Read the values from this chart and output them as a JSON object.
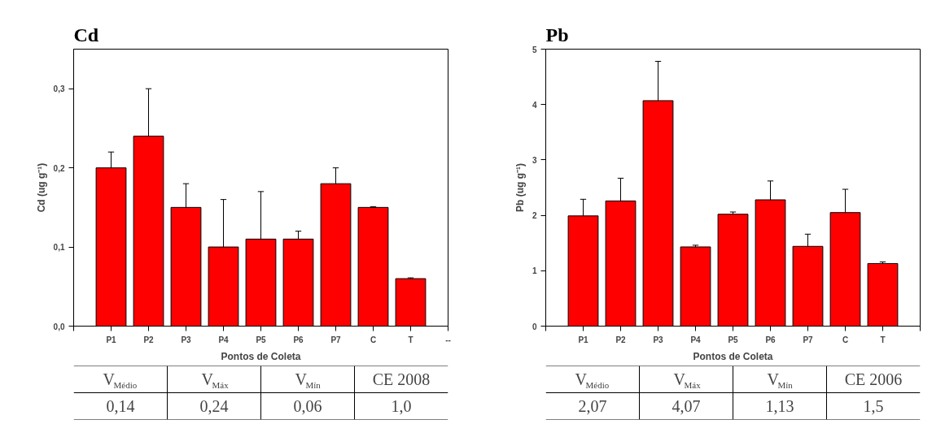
{
  "chart_data": [
    {
      "type": "bar",
      "title": "Cd",
      "xlabel": "Pontos de Coleta",
      "ylabel": "Cd (ug g⁻¹)",
      "categories": [
        "P1",
        "P2",
        "P3",
        "P4",
        "P5",
        "P6",
        "P7",
        "C",
        "T",
        "--"
      ],
      "values": [
        0.2,
        0.24,
        0.15,
        0.1,
        0.11,
        0.11,
        0.18,
        0.15,
        0.06,
        null
      ],
      "errors": [
        [
          0.2,
          0.22
        ],
        [
          0.24,
          0.3
        ],
        [
          0.15,
          0.18
        ],
        [
          0.1,
          0.16
        ],
        [
          0.11,
          0.17
        ],
        [
          0.11,
          0.12
        ],
        [
          0.18,
          0.2
        ],
        [
          0.15,
          0.151
        ],
        [
          0.06,
          0.061
        ],
        null
      ],
      "color": "#ff0000",
      "ylim": [
        0,
        0.35
      ],
      "yticks": [
        {
          "value": 0,
          "label": "0,0"
        },
        {
          "value": 0.1,
          "label": "0,1"
        },
        {
          "value": 0.2,
          "label": "0,2"
        },
        {
          "value": 0.3,
          "label": "0,3"
        }
      ],
      "grid": false,
      "annotations": [
        "V$_{Médio}$",
        "V$_{Máx}$",
        "V$_{Mín}$",
        "CE 2008",
        "0,14",
        "0,24",
        "0,06",
        "1,0"
      ]
    },
    {
      "type": "bar",
      "title": "Pb",
      "xlabel": "Pontos de Coleta",
      "ylabel": "Pb (ug g⁻¹)",
      "categories": [
        "P1",
        "P2",
        "P3",
        "P4",
        "P5",
        "P6",
        "P7",
        "C",
        "T"
      ],
      "values": [
        1.99,
        2.26,
        4.07,
        1.43,
        2.02,
        2.28,
        1.44,
        2.05,
        1.13
      ],
      "errors": [
        [
          1.99,
          2.29
        ],
        [
          2.26,
          2.67
        ],
        [
          4.07,
          4.78
        ],
        [
          1.43,
          1.46
        ],
        [
          2.02,
          2.06
        ],
        [
          2.28,
          2.62
        ],
        [
          1.44,
          1.66
        ],
        [
          2.05,
          2.47
        ],
        [
          1.13,
          1.16
        ]
      ],
      "color": "#ff0000",
      "ylim": [
        0,
        5
      ],
      "yticks": [
        0,
        1,
        2,
        3,
        4,
        5
      ],
      "grid": false,
      "annotations": [
        "V$_{Médio}$",
        "V$_{Máx}$",
        "V$_{Mín}$",
        "CE 2006",
        "2,07",
        "4,07",
        "1,13",
        "1,5"
      ]
    }
  ]
}
